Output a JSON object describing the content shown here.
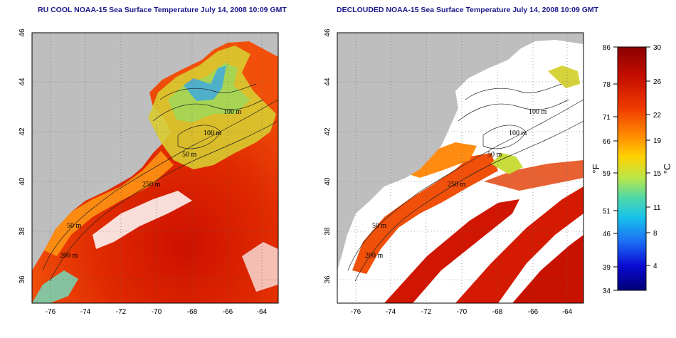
{
  "panels": [
    {
      "id": "left",
      "title": "RU COOL NOAA-15 Sea Surface Temperature July 14, 2008 10:09 GMT",
      "x_ticks": [
        "-76",
        "-74",
        "-72",
        "-70",
        "-68",
        "-66",
        "-64"
      ],
      "y_ticks": [
        "46",
        "44",
        "42",
        "40",
        "38",
        "36"
      ],
      "contour_labels": [
        "100 m",
        "100 m",
        "50 m",
        "250 m",
        "50 m",
        "200 m"
      ]
    },
    {
      "id": "right",
      "title": "DECLOUDED NOAA-15 Sea Surface Temperature July 14, 2008 10:09 GMT",
      "x_ticks": [
        "-76",
        "-74",
        "-72",
        "-70",
        "-68",
        "-66",
        "-64"
      ],
      "y_ticks": [
        "46",
        "44",
        "42",
        "40",
        "38",
        "36"
      ],
      "contour_labels": [
        "100 m",
        "100 m",
        "50 m",
        "250 m",
        "50 m",
        "200 m"
      ]
    }
  ],
  "colorbar": {
    "fahrenheit_ticks": [
      "86",
      "78",
      "71",
      "66",
      "59",
      "51",
      "46",
      "39",
      "34"
    ],
    "celsius_ticks": [
      "30",
      "26",
      "22",
      "19",
      "15",
      "11",
      "8",
      "4"
    ],
    "unit_f": "°F",
    "unit_c": "°C",
    "colors": [
      "#8b0000",
      "#d11a00",
      "#f04a00",
      "#ff8c00",
      "#ffd200",
      "#c8e63c",
      "#5fd6a0",
      "#19c8e6",
      "#1e82ff",
      "#0000c8",
      "#00006e"
    ]
  },
  "colors": {
    "land": "#bebebe",
    "cloud": "#ffffff",
    "title": "#1a1a8c"
  }
}
